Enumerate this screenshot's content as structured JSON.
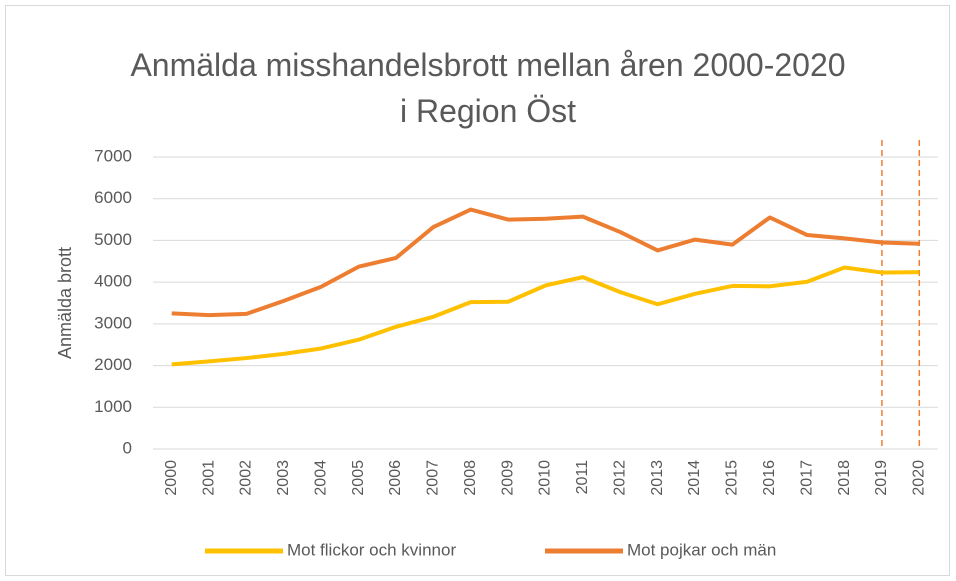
{
  "chart_data": {
    "type": "line",
    "title": "Anmälda misshandelsbrott mellan åren 2000-2020 i Region Öst",
    "y_label": "Anmälda brott",
    "categories": [
      "2000",
      "2001",
      "2002",
      "2003",
      "2004",
      "2005",
      "2006",
      "2007",
      "2008",
      "2009",
      "2010",
      "2011",
      "2012",
      "2013",
      "2014",
      "2015",
      "2016",
      "2017",
      "2018",
      "2019",
      "2020"
    ],
    "series": [
      {
        "name": "Mot flickor och kvinnor",
        "color": "#FFC000",
        "values": [
          2030,
          2100,
          2180,
          2280,
          2410,
          2620,
          2930,
          3170,
          3520,
          3530,
          3920,
          4120,
          3760,
          3470,
          3720,
          3910,
          3900,
          4010,
          4350,
          4230,
          4240
        ]
      },
      {
        "name": "Mot pojkar och män",
        "color": "#ED7D31",
        "values": [
          3250,
          3210,
          3240,
          3550,
          3890,
          4370,
          4580,
          5320,
          5740,
          5500,
          5520,
          5570,
          5200,
          4760,
          5020,
          4900,
          5550,
          5130,
          5050,
          4950,
          4920
        ]
      }
    ],
    "ylim": [
      0,
      7000
    ],
    "yticks": [
      0,
      1000,
      2000,
      3000,
      4000,
      5000,
      6000,
      7000
    ],
    "grid": true,
    "legend": "bottom"
  }
}
